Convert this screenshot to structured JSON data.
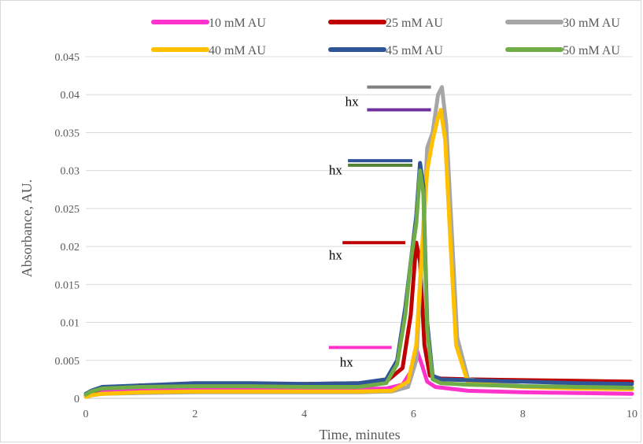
{
  "chart_data": {
    "type": "line",
    "title": "",
    "xlabel": "Time, minutes",
    "ylabel": "Absorbance, AU.",
    "xlim": [
      0,
      10
    ],
    "ylim": [
      0,
      0.045
    ],
    "xticks": [
      0,
      2,
      4,
      6,
      8,
      10
    ],
    "yticks": [
      0,
      0.005,
      0.01,
      0.015,
      0.02,
      0.025,
      0.03,
      0.035,
      0.04,
      0.045
    ],
    "ytick_labels": [
      "0",
      "0.005",
      "0.01",
      "0.015",
      "0.02",
      "0.025",
      "0.03",
      "0.035",
      "0.04",
      "0.045"
    ],
    "grid": "horizontal",
    "legend_position": "top",
    "series": [
      {
        "name": "10 mM AU",
        "color": "#ff33cc",
        "x": [
          0,
          0.1,
          0.3,
          1,
          2,
          3,
          4,
          5,
          5.5,
          5.8,
          5.95,
          6.05,
          6.15,
          6.25,
          6.4,
          7,
          8,
          9,
          10
        ],
        "y": [
          0.0003,
          0.0005,
          0.0008,
          0.001,
          0.0011,
          0.0012,
          0.0012,
          0.0012,
          0.0013,
          0.0018,
          0.0035,
          0.0065,
          0.0045,
          0.0022,
          0.0015,
          0.001,
          0.0008,
          0.0007,
          0.0006
        ]
      },
      {
        "name": "25 mM AU",
        "color": "#c00000",
        "x": [
          0,
          0.1,
          0.3,
          1,
          2,
          3,
          4,
          5,
          5.5,
          5.8,
          5.95,
          6.05,
          6.12,
          6.2,
          6.3,
          6.5,
          7,
          8,
          9,
          10
        ],
        "y": [
          0.0005,
          0.0008,
          0.0013,
          0.0017,
          0.0019,
          0.0019,
          0.0019,
          0.002,
          0.0022,
          0.004,
          0.011,
          0.0205,
          0.018,
          0.007,
          0.003,
          0.0026,
          0.0025,
          0.0024,
          0.0023,
          0.0022
        ]
      },
      {
        "name": "30 mM AU",
        "color": "#a6a6a6",
        "x": [
          0,
          0.1,
          0.3,
          1,
          2,
          3,
          4,
          5,
          5.6,
          5.9,
          6.05,
          6.15,
          6.25,
          6.35,
          6.45,
          6.52,
          6.6,
          6.7,
          6.8,
          7,
          8,
          9,
          10
        ],
        "y": [
          0.0002,
          0.0004,
          0.0006,
          0.0007,
          0.0008,
          0.0008,
          0.0008,
          0.0008,
          0.0009,
          0.0015,
          0.005,
          0.018,
          0.033,
          0.035,
          0.04,
          0.041,
          0.036,
          0.022,
          0.008,
          0.0025,
          0.0016,
          0.0015,
          0.0014
        ]
      },
      {
        "name": "40 mM AU",
        "color": "#ffc000",
        "x": [
          0,
          0.1,
          0.3,
          1,
          2,
          3,
          4,
          5,
          5.6,
          5.9,
          6.05,
          6.15,
          6.25,
          6.35,
          6.45,
          6.5,
          6.58,
          6.68,
          6.78,
          7,
          8,
          9,
          10
        ],
        "y": [
          0.0002,
          0.0004,
          0.0006,
          0.0008,
          0.0009,
          0.0009,
          0.0009,
          0.0009,
          0.001,
          0.0022,
          0.007,
          0.019,
          0.03,
          0.034,
          0.037,
          0.038,
          0.034,
          0.02,
          0.007,
          0.002,
          0.0015,
          0.0013,
          0.0012
        ]
      },
      {
        "name": "45 mM AU",
        "color": "#2f5597",
        "x": [
          0,
          0.1,
          0.3,
          1,
          2,
          3,
          4,
          5,
          5.5,
          5.7,
          5.85,
          5.95,
          6.05,
          6.12,
          6.18,
          6.25,
          6.35,
          6.5,
          7,
          8,
          9,
          10
        ],
        "y": [
          0.0006,
          0.001,
          0.0015,
          0.0017,
          0.002,
          0.002,
          0.0019,
          0.002,
          0.0025,
          0.005,
          0.012,
          0.018,
          0.024,
          0.031,
          0.028,
          0.01,
          0.003,
          0.0025,
          0.0024,
          0.0022,
          0.002,
          0.0019
        ]
      },
      {
        "name": "50 mM AU",
        "color": "#70ad47",
        "x": [
          0,
          0.1,
          0.3,
          1,
          2,
          3,
          4,
          5,
          5.5,
          5.7,
          5.85,
          5.95,
          6.05,
          6.12,
          6.18,
          6.25,
          6.35,
          6.5,
          7,
          8,
          9,
          10
        ],
        "y": [
          0.0005,
          0.0009,
          0.0013,
          0.0015,
          0.0016,
          0.0016,
          0.0015,
          0.0015,
          0.002,
          0.0045,
          0.011,
          0.018,
          0.023,
          0.03,
          0.027,
          0.009,
          0.0025,
          0.002,
          0.0018,
          0.0016,
          0.0015,
          0.0014
        ]
      }
    ],
    "annotations": [
      {
        "text": "hx",
        "x": 4.65,
        "y": 0.0042
      },
      {
        "text": "hx",
        "x": 4.45,
        "y": 0.0183
      },
      {
        "text": "hx",
        "x": 4.45,
        "y": 0.0295
      },
      {
        "text": "hx",
        "x": 4.75,
        "y": 0.0385
      }
    ],
    "markers": [
      {
        "color": "#ff33cc",
        "x1": 4.45,
        "x2": 5.6,
        "y": 0.0067
      },
      {
        "color": "#c00000",
        "x1": 4.7,
        "x2": 5.85,
        "y": 0.0205
      },
      {
        "color": "#2f5597",
        "x1": 4.8,
        "x2": 5.98,
        "y": 0.0313
      },
      {
        "color": "#548235",
        "x1": 4.8,
        "x2": 5.98,
        "y": 0.0307
      },
      {
        "color": "#808080",
        "x1": 5.15,
        "x2": 6.32,
        "y": 0.041
      },
      {
        "color": "#7030a0",
        "x1": 5.15,
        "x2": 6.32,
        "y": 0.038
      }
    ]
  }
}
